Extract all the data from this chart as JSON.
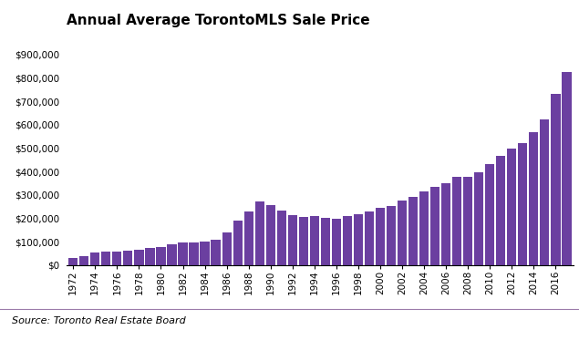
{
  "title": "Annual Average TorontoMLS Sale Price",
  "source": "Source: Toronto Real Estate Board",
  "bar_color": "#6B3FA0",
  "years": [
    1972,
    1973,
    1974,
    1975,
    1976,
    1977,
    1978,
    1979,
    1980,
    1981,
    1982,
    1983,
    1984,
    1985,
    1986,
    1987,
    1988,
    1989,
    1990,
    1991,
    1992,
    1993,
    1994,
    1995,
    1996,
    1997,
    1998,
    1999,
    2000,
    2001,
    2002,
    2003,
    2004,
    2005,
    2006,
    2007,
    2008,
    2009,
    2010,
    2011,
    2012,
    2013,
    2014,
    2015,
    2016,
    2017
  ],
  "values": [
    30000,
    40000,
    55000,
    57000,
    60000,
    63000,
    67000,
    72000,
    76000,
    90000,
    97000,
    99000,
    101000,
    109000,
    138000,
    189000,
    229000,
    273000,
    255000,
    234000,
    214000,
    206000,
    208000,
    203000,
    198000,
    211000,
    216000,
    228000,
    243000,
    251000,
    275000,
    293000,
    315000,
    335000,
    351000,
    376000,
    379000,
    395000,
    431000,
    465000,
    497000,
    523000,
    567000,
    622000,
    730000,
    823000
  ],
  "ylim": [
    0,
    900000
  ],
  "yticks": [
    0,
    100000,
    200000,
    300000,
    400000,
    500000,
    600000,
    700000,
    800000,
    900000
  ],
  "ytick_labels": [
    "$0",
    "$100,000",
    "$200,000",
    "$300,000",
    "$400,000",
    "$500,000",
    "$600,000",
    "$700,000",
    "$800,000",
    "$900,000"
  ],
  "background_color": "#FFFFFF",
  "title_fontsize": 11,
  "source_fontsize": 8,
  "tick_fontsize": 7.5,
  "bar_width": 0.85
}
